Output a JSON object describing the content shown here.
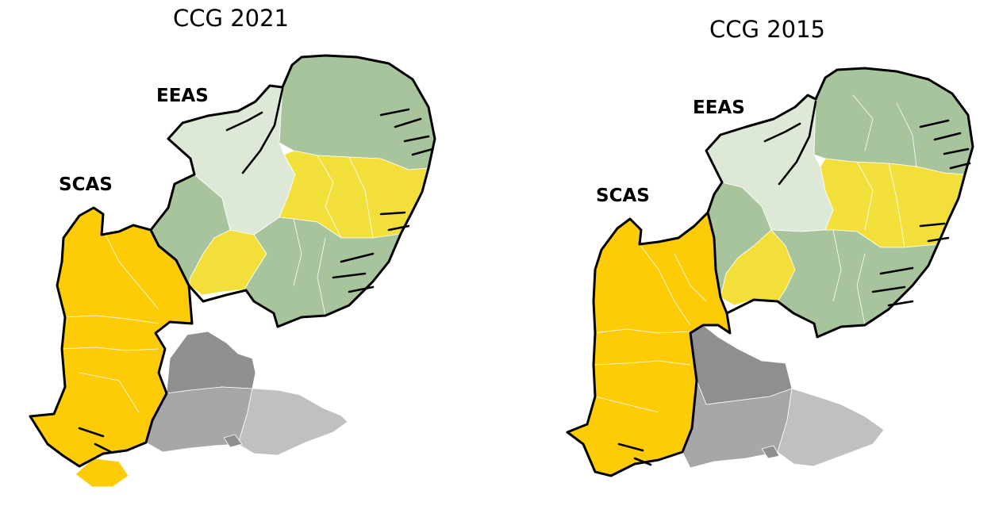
{
  "maps": [
    {
      "title": "CCG 2021",
      "labels": {
        "eeas": "EEAS",
        "scas": "SCAS"
      }
    },
    {
      "title": "CCG 2015",
      "labels": {
        "eeas": "EEAS",
        "scas": "SCAS"
      }
    }
  ],
  "colors": {
    "eeas_dark_green": "#a8c49c",
    "eeas_light_green": "#dde8d6",
    "eeas_yellow": "#f2df3a",
    "scas_gold": "#fdcc06",
    "southeast_dark_grey": "#8f8f91",
    "southeast_mid_grey": "#a7a7a9",
    "southeast_light_grey": "#c0c0c2",
    "outline": "#000000",
    "boundary": "#ffffff"
  }
}
